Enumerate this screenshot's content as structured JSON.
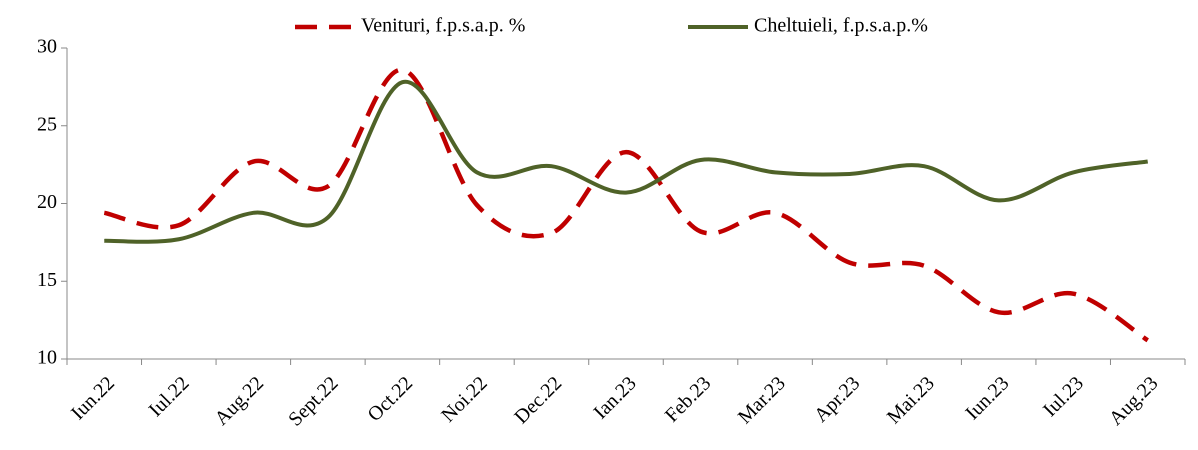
{
  "chart_data": {
    "type": "line",
    "categories": [
      "Iun.22",
      "Iul.22",
      "Aug.22",
      "Sept.22",
      "Oct.22",
      "Noi.22",
      "Dec.22",
      "Ian.23",
      "Feb.23",
      "Mar.23",
      "Apr.23",
      "Mai.23",
      "Iun.23",
      "Iul.23",
      "Aug.23"
    ],
    "series": [
      {
        "name": "Venituri, f.p.s.a.p. %",
        "color": "#c00000",
        "dashed": true,
        "values": [
          19.4,
          18.6,
          22.7,
          21.1,
          28.6,
          19.9,
          18.1,
          23.3,
          18.2,
          19.4,
          16.2,
          16.0,
          13.0,
          14.2,
          11.2
        ]
      },
      {
        "name": "Cheltuieli, f.p.s.a.p.%",
        "color": "#4f6228",
        "dashed": false,
        "values": [
          17.6,
          17.7,
          19.4,
          19.1,
          27.8,
          22.0,
          22.4,
          20.7,
          22.8,
          22.0,
          21.9,
          22.4,
          20.2,
          22.0,
          22.7
        ]
      }
    ],
    "ylim": [
      10,
      30
    ],
    "yticks": [
      10,
      15,
      20,
      25,
      30
    ],
    "legend": "top",
    "smooth": true
  }
}
